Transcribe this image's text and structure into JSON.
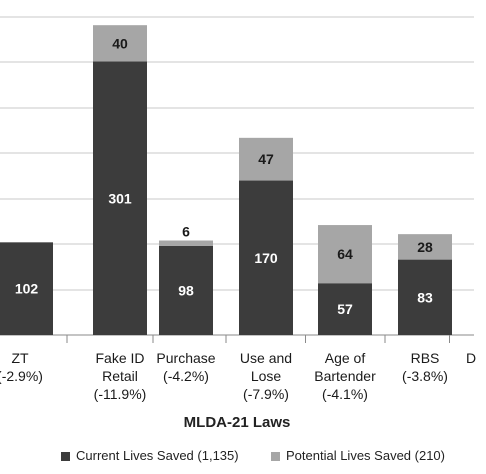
{
  "chart_data": {
    "type": "bar",
    "stacked": true,
    "categories": [
      {
        "lines": [
          "ZT",
          "(-2.9%)"
        ]
      },
      {
        "lines": [
          "Fake ID",
          "Retail",
          "(-11.9%)"
        ]
      },
      {
        "lines": [
          "Purchase",
          "(-4.2%)"
        ]
      },
      {
        "lines": [
          "Use and",
          "Lose",
          "(-7.9%)"
        ]
      },
      {
        "lines": [
          "Age of",
          "Bartender",
          "(-4.1%)"
        ]
      },
      {
        "lines": [
          "RBS",
          "(-3.8%)"
        ]
      },
      {
        "lines": [
          "D"
        ]
      }
    ],
    "series": [
      {
        "name": "Current Lives Saved (1,135)",
        "color": "#3c3c3c",
        "values": [
          102,
          301,
          98,
          170,
          57,
          83,
          null
        ]
      },
      {
        "name": "Potential Lives Saved (210)",
        "color": "#a6a6a6",
        "values": [
          null,
          40,
          6,
          47,
          64,
          28,
          null
        ]
      }
    ],
    "ylim": [
      0,
      350
    ],
    "grid": true,
    "legend_position": "bottom",
    "xlabel": "MLDA-21 Laws",
    "ylabel": ""
  }
}
